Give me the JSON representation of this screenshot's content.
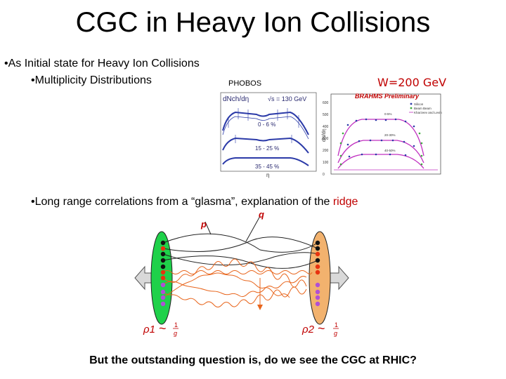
{
  "slide": {
    "title": "CGC in Heavy Ion Collisions",
    "bullets": {
      "b1": "•As Initial state for Heavy Ion Collisions",
      "b2": "•Multiplicity Distributions",
      "b3_prefix": "•Long range correlations from a “glasma”, explanation of the ",
      "b3_highlight": "ridge"
    },
    "closing": "But the outstanding question is, do we see the CGC at RHIC?"
  },
  "phobos": {
    "label": "PHOBOS",
    "ylabel": "dNch/dη",
    "energy": "√s = 130 GeV",
    "centralities": [
      "0 - 6 %",
      "15 - 25 %",
      "35 - 45 %"
    ],
    "xlabel": "η"
  },
  "brahms": {
    "label": "W=200 GeV",
    "title": "BRAHMS Preliminary",
    "ylabel": "dN/dη",
    "legend": [
      "Silicon",
      "Beam Beam",
      "Kharzeev and Levin"
    ],
    "centralities": [
      "0-5%",
      "20-30%",
      "40-50%"
    ],
    "yticks": [
      "600",
      "500",
      "400",
      "300",
      "200",
      "100",
      "0"
    ]
  },
  "diagram": {
    "p_label": "p",
    "q_label": "q",
    "rho1": "ρ1",
    "rho2": "ρ2",
    "sim": "~",
    "frac_num": "1",
    "frac_den": "g",
    "colors": {
      "left_nucleus": "#1fd14a",
      "right_nucleus": "#f2b26e",
      "gluon": "#e8651c",
      "line": "#222222",
      "dot_black": "#111111",
      "dot_red": "#e8320f",
      "dot_purple": "#b04fd6"
    }
  }
}
